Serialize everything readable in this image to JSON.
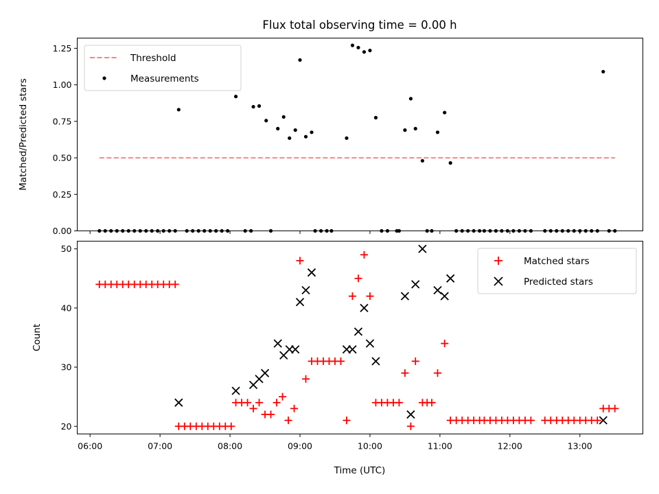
{
  "chart_data": [
    {
      "type": "scatter",
      "title": "Flux total observing time = 0.00 h",
      "xlabel": "",
      "ylabel": "Matched/Predicted stars",
      "ylim": [
        0,
        1.32
      ],
      "yticks": [
        "0.00",
        "0.25",
        "0.50",
        "0.75",
        "1.00",
        "1.25"
      ],
      "grid": false,
      "legend": {
        "placement": "top-left",
        "entries": [
          "Threshold",
          "Measurements"
        ]
      },
      "threshold": {
        "name": "Threshold",
        "y": 0.5,
        "x_start": "06:08",
        "x_end": "13:30",
        "color": "#ff7f7f"
      },
      "series": [
        {
          "name": "Measurements",
          "color": "#000000",
          "points": [
            [
              "06:08",
              0
            ],
            [
              "06:13",
              0
            ],
            [
              "06:18",
              0
            ],
            [
              "06:23",
              0
            ],
            [
              "06:28",
              0
            ],
            [
              "06:33",
              0
            ],
            [
              "06:38",
              0
            ],
            [
              "06:43",
              0
            ],
            [
              "06:48",
              0
            ],
            [
              "06:53",
              0
            ],
            [
              "06:58",
              0
            ],
            [
              "07:03",
              0
            ],
            [
              "07:08",
              0
            ],
            [
              "07:13",
              0
            ],
            [
              "07:16",
              0.83
            ],
            [
              "07:23",
              0
            ],
            [
              "07:28",
              0
            ],
            [
              "07:33",
              0
            ],
            [
              "07:38",
              0
            ],
            [
              "07:43",
              0
            ],
            [
              "07:48",
              0
            ],
            [
              "07:53",
              0
            ],
            [
              "07:58",
              0
            ],
            [
              "08:05",
              0.92
            ],
            [
              "08:13",
              0
            ],
            [
              "08:18",
              0
            ],
            [
              "08:20",
              0.85
            ],
            [
              "08:25",
              0.855
            ],
            [
              "08:31",
              0.755
            ],
            [
              "08:35",
              0
            ],
            [
              "08:41",
              0.7
            ],
            [
              "08:46",
              0.78
            ],
            [
              "08:51",
              0.635
            ],
            [
              "08:56",
              0.69
            ],
            [
              "09:00",
              1.17
            ],
            [
              "09:05",
              0.645
            ],
            [
              "09:10",
              0.675
            ],
            [
              "09:13",
              0
            ],
            [
              "09:18",
              0
            ],
            [
              "09:23",
              0
            ],
            [
              "09:27",
              0
            ],
            [
              "09:40",
              0.635
            ],
            [
              "09:45",
              1.27
            ],
            [
              "09:50",
              1.255
            ],
            [
              "09:55",
              1.225
            ],
            [
              "10:00",
              1.235
            ],
            [
              "10:05",
              0.775
            ],
            [
              "10:10",
              0
            ],
            [
              "10:15",
              0
            ],
            [
              "10:23",
              0
            ],
            [
              "10:25",
              0
            ],
            [
              "10:30",
              0.69
            ],
            [
              "10:35",
              0.905
            ],
            [
              "10:39",
              0.7
            ],
            [
              "10:45",
              0.48
            ],
            [
              "10:49",
              0
            ],
            [
              "10:53",
              0
            ],
            [
              "10:58",
              0.675
            ],
            [
              "11:04",
              0.81
            ],
            [
              "11:09",
              0.465
            ],
            [
              "11:14",
              0
            ],
            [
              "11:19",
              0
            ],
            [
              "11:24",
              0
            ],
            [
              "11:29",
              0
            ],
            [
              "11:34",
              0
            ],
            [
              "11:38",
              0
            ],
            [
              "11:43",
              0
            ],
            [
              "11:48",
              0
            ],
            [
              "11:53",
              0
            ],
            [
              "11:58",
              0
            ],
            [
              "12:03",
              0
            ],
            [
              "12:08",
              0
            ],
            [
              "12:13",
              0
            ],
            [
              "12:18",
              0
            ],
            [
              "12:30",
              0
            ],
            [
              "12:35",
              0
            ],
            [
              "12:40",
              0
            ],
            [
              "12:45",
              0
            ],
            [
              "12:50",
              0
            ],
            [
              "12:55",
              0
            ],
            [
              "13:00",
              0
            ],
            [
              "13:05",
              0
            ],
            [
              "13:10",
              0
            ],
            [
              "13:15",
              0
            ],
            [
              "13:20",
              1.09
            ],
            [
              "13:25",
              0
            ],
            [
              "13:30",
              0
            ]
          ]
        }
      ]
    },
    {
      "type": "scatter",
      "title": "",
      "xlabel": "Time (UTC)",
      "ylabel": "Count",
      "xlim": [
        "05:49",
        "13:54"
      ],
      "ylim": [
        18.7,
        51.3
      ],
      "xticks": [
        "06:00",
        "07:00",
        "08:00",
        "09:00",
        "10:00",
        "11:00",
        "12:00",
        "13:00"
      ],
      "yticks": [
        "20",
        "30",
        "40",
        "50"
      ],
      "grid": false,
      "legend": {
        "placement": "top-right",
        "entries": [
          "Matched stars",
          "Predicted stars"
        ]
      },
      "series": [
        {
          "name": "Matched stars",
          "marker": "plus",
          "color": "#ff0000",
          "points": [
            [
              "06:08",
              44
            ],
            [
              "06:13",
              44
            ],
            [
              "06:18",
              44
            ],
            [
              "06:23",
              44
            ],
            [
              "06:28",
              44
            ],
            [
              "06:33",
              44
            ],
            [
              "06:38",
              44
            ],
            [
              "06:43",
              44
            ],
            [
              "06:48",
              44
            ],
            [
              "06:53",
              44
            ],
            [
              "06:58",
              44
            ],
            [
              "07:03",
              44
            ],
            [
              "07:08",
              44
            ],
            [
              "07:13",
              44
            ],
            [
              "07:16",
              20
            ],
            [
              "07:21",
              20
            ],
            [
              "07:26",
              20
            ],
            [
              "07:31",
              20
            ],
            [
              "07:36",
              20
            ],
            [
              "07:41",
              20
            ],
            [
              "07:46",
              20
            ],
            [
              "07:51",
              20
            ],
            [
              "07:56",
              20
            ],
            [
              "08:01",
              20
            ],
            [
              "08:05",
              24
            ],
            [
              "08:10",
              24
            ],
            [
              "08:15",
              24
            ],
            [
              "08:20",
              23
            ],
            [
              "08:25",
              24
            ],
            [
              "08:30",
              22
            ],
            [
              "08:35",
              22
            ],
            [
              "08:40",
              24
            ],
            [
              "08:45",
              25
            ],
            [
              "08:50",
              21
            ],
            [
              "08:55",
              23
            ],
            [
              "09:00",
              48
            ],
            [
              "09:05",
              28
            ],
            [
              "09:10",
              31
            ],
            [
              "09:15",
              31
            ],
            [
              "09:20",
              31
            ],
            [
              "09:25",
              31
            ],
            [
              "09:30",
              31
            ],
            [
              "09:35",
              31
            ],
            [
              "09:40",
              21
            ],
            [
              "09:45",
              42
            ],
            [
              "09:50",
              45
            ],
            [
              "09:55",
              49
            ],
            [
              "10:00",
              42
            ],
            [
              "10:05",
              24
            ],
            [
              "10:10",
              24
            ],
            [
              "10:15",
              24
            ],
            [
              "10:20",
              24
            ],
            [
              "10:25",
              24
            ],
            [
              "10:30",
              29
            ],
            [
              "10:35",
              20
            ],
            [
              "10:39",
              31
            ],
            [
              "10:45",
              24
            ],
            [
              "10:49",
              24
            ],
            [
              "10:53",
              24
            ],
            [
              "10:58",
              29
            ],
            [
              "11:04",
              34
            ],
            [
              "11:09",
              21
            ],
            [
              "11:14",
              21
            ],
            [
              "11:19",
              21
            ],
            [
              "11:24",
              21
            ],
            [
              "11:29",
              21
            ],
            [
              "11:34",
              21
            ],
            [
              "11:38",
              21
            ],
            [
              "11:43",
              21
            ],
            [
              "11:48",
              21
            ],
            [
              "11:53",
              21
            ],
            [
              "11:58",
              21
            ],
            [
              "12:03",
              21
            ],
            [
              "12:08",
              21
            ],
            [
              "12:13",
              21
            ],
            [
              "12:18",
              21
            ],
            [
              "12:30",
              21
            ],
            [
              "12:35",
              21
            ],
            [
              "12:40",
              21
            ],
            [
              "12:45",
              21
            ],
            [
              "12:50",
              21
            ],
            [
              "12:55",
              21
            ],
            [
              "13:00",
              21
            ],
            [
              "13:05",
              21
            ],
            [
              "13:10",
              21
            ],
            [
              "13:15",
              21
            ],
            [
              "13:20",
              23
            ],
            [
              "13:25",
              23
            ],
            [
              "13:30",
              23
            ]
          ]
        },
        {
          "name": "Predicted stars",
          "marker": "x",
          "color": "#000000",
          "points": [
            [
              "07:16",
              24
            ],
            [
              "08:05",
              26
            ],
            [
              "08:20",
              27
            ],
            [
              "08:25",
              28
            ],
            [
              "08:30",
              29
            ],
            [
              "08:41",
              34
            ],
            [
              "08:46",
              32
            ],
            [
              "08:51",
              33
            ],
            [
              "08:56",
              33
            ],
            [
              "09:00",
              41
            ],
            [
              "09:05",
              43
            ],
            [
              "09:10",
              46
            ],
            [
              "09:40",
              33
            ],
            [
              "09:45",
              33
            ],
            [
              "09:50",
              36
            ],
            [
              "09:55",
              40
            ],
            [
              "10:00",
              34
            ],
            [
              "10:05",
              31
            ],
            [
              "10:30",
              42
            ],
            [
              "10:35",
              22
            ],
            [
              "10:39",
              44
            ],
            [
              "10:45",
              50
            ],
            [
              "10:58",
              43
            ],
            [
              "11:04",
              42
            ],
            [
              "11:09",
              45
            ],
            [
              "13:20",
              21
            ]
          ]
        }
      ]
    }
  ]
}
